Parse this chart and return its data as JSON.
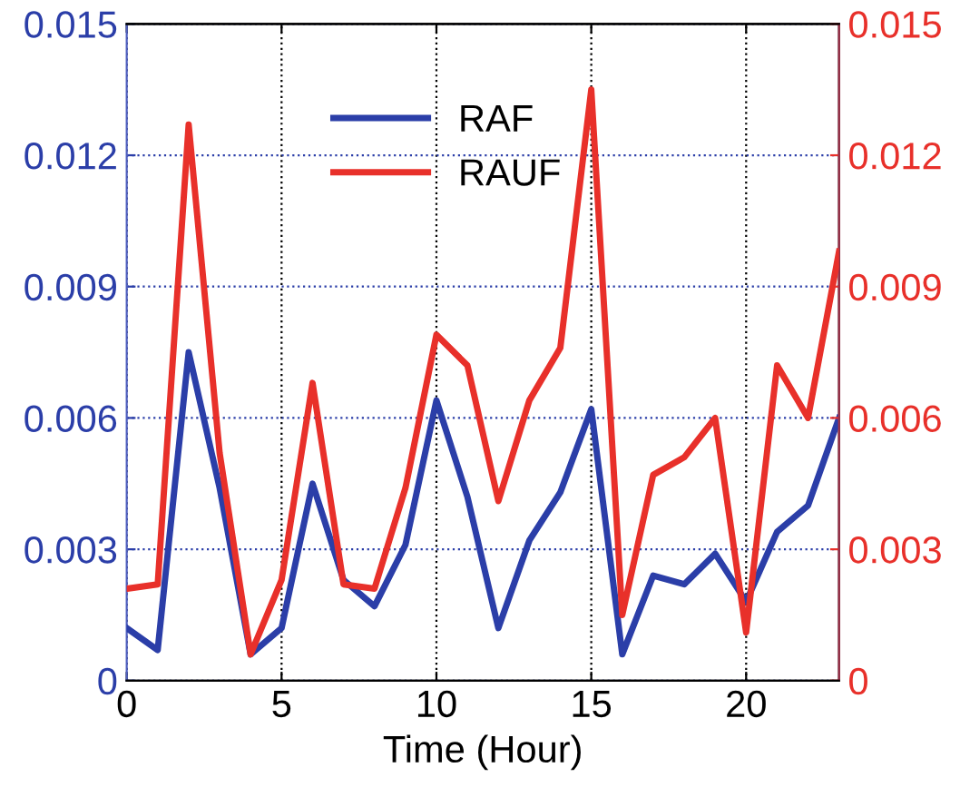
{
  "chart_data": {
    "type": "line",
    "xlabel": "Time (Hour)",
    "x": [
      0,
      1,
      2,
      3,
      4,
      5,
      6,
      7,
      8,
      9,
      10,
      11,
      12,
      13,
      14,
      15,
      16,
      17,
      18,
      19,
      20,
      21,
      22,
      23
    ],
    "series": [
      {
        "name": "RAF",
        "color": "#2b3ea8",
        "values": [
          0.0012,
          0.0007,
          0.0075,
          0.0044,
          0.0006,
          0.0012,
          0.0045,
          0.0023,
          0.0017,
          0.0031,
          0.0064,
          0.0042,
          0.0012,
          0.0032,
          0.0043,
          0.0062,
          0.0006,
          0.0024,
          0.0022,
          0.0029,
          0.0018,
          0.0034,
          0.004,
          0.006
        ]
      },
      {
        "name": "RAUF",
        "color": "#e8302a",
        "axis": "y2",
        "values": [
          0.0021,
          0.0022,
          0.0127,
          0.0052,
          0.0006,
          0.0023,
          0.0068,
          0.0022,
          0.0021,
          0.0044,
          0.0079,
          0.0072,
          0.0041,
          0.0064,
          0.0076,
          0.0135,
          0.0015,
          0.0047,
          0.0051,
          0.006,
          0.0011,
          0.0072,
          0.006,
          0.0098
        ]
      }
    ],
    "xlim": [
      0,
      23
    ],
    "xticks": [
      0,
      5,
      10,
      15,
      20
    ],
    "ylim": [
      0,
      0.015
    ],
    "yticks": [
      {
        "value": 0,
        "label": "0"
      },
      {
        "value": 0.003,
        "label": "0.003"
      },
      {
        "value": 0.006,
        "label": "0.006"
      },
      {
        "value": 0.009,
        "label": "0.009"
      },
      {
        "value": 0.012,
        "label": "0.012"
      },
      {
        "value": 0.015,
        "label": "0.015"
      }
    ],
    "y2lim": [
      0,
      0.015
    ],
    "y2ticks": [
      {
        "value": 0,
        "label": "0"
      },
      {
        "value": 0.003,
        "label": "0.003"
      },
      {
        "value": 0.006,
        "label": "0.006"
      },
      {
        "value": 0.009,
        "label": "0.009"
      },
      {
        "value": 0.012,
        "label": "0.012"
      },
      {
        "value": 0.015,
        "label": "0.015"
      }
    ],
    "grid": true,
    "legend": "top",
    "marker": "none",
    "line_style": "solid"
  }
}
